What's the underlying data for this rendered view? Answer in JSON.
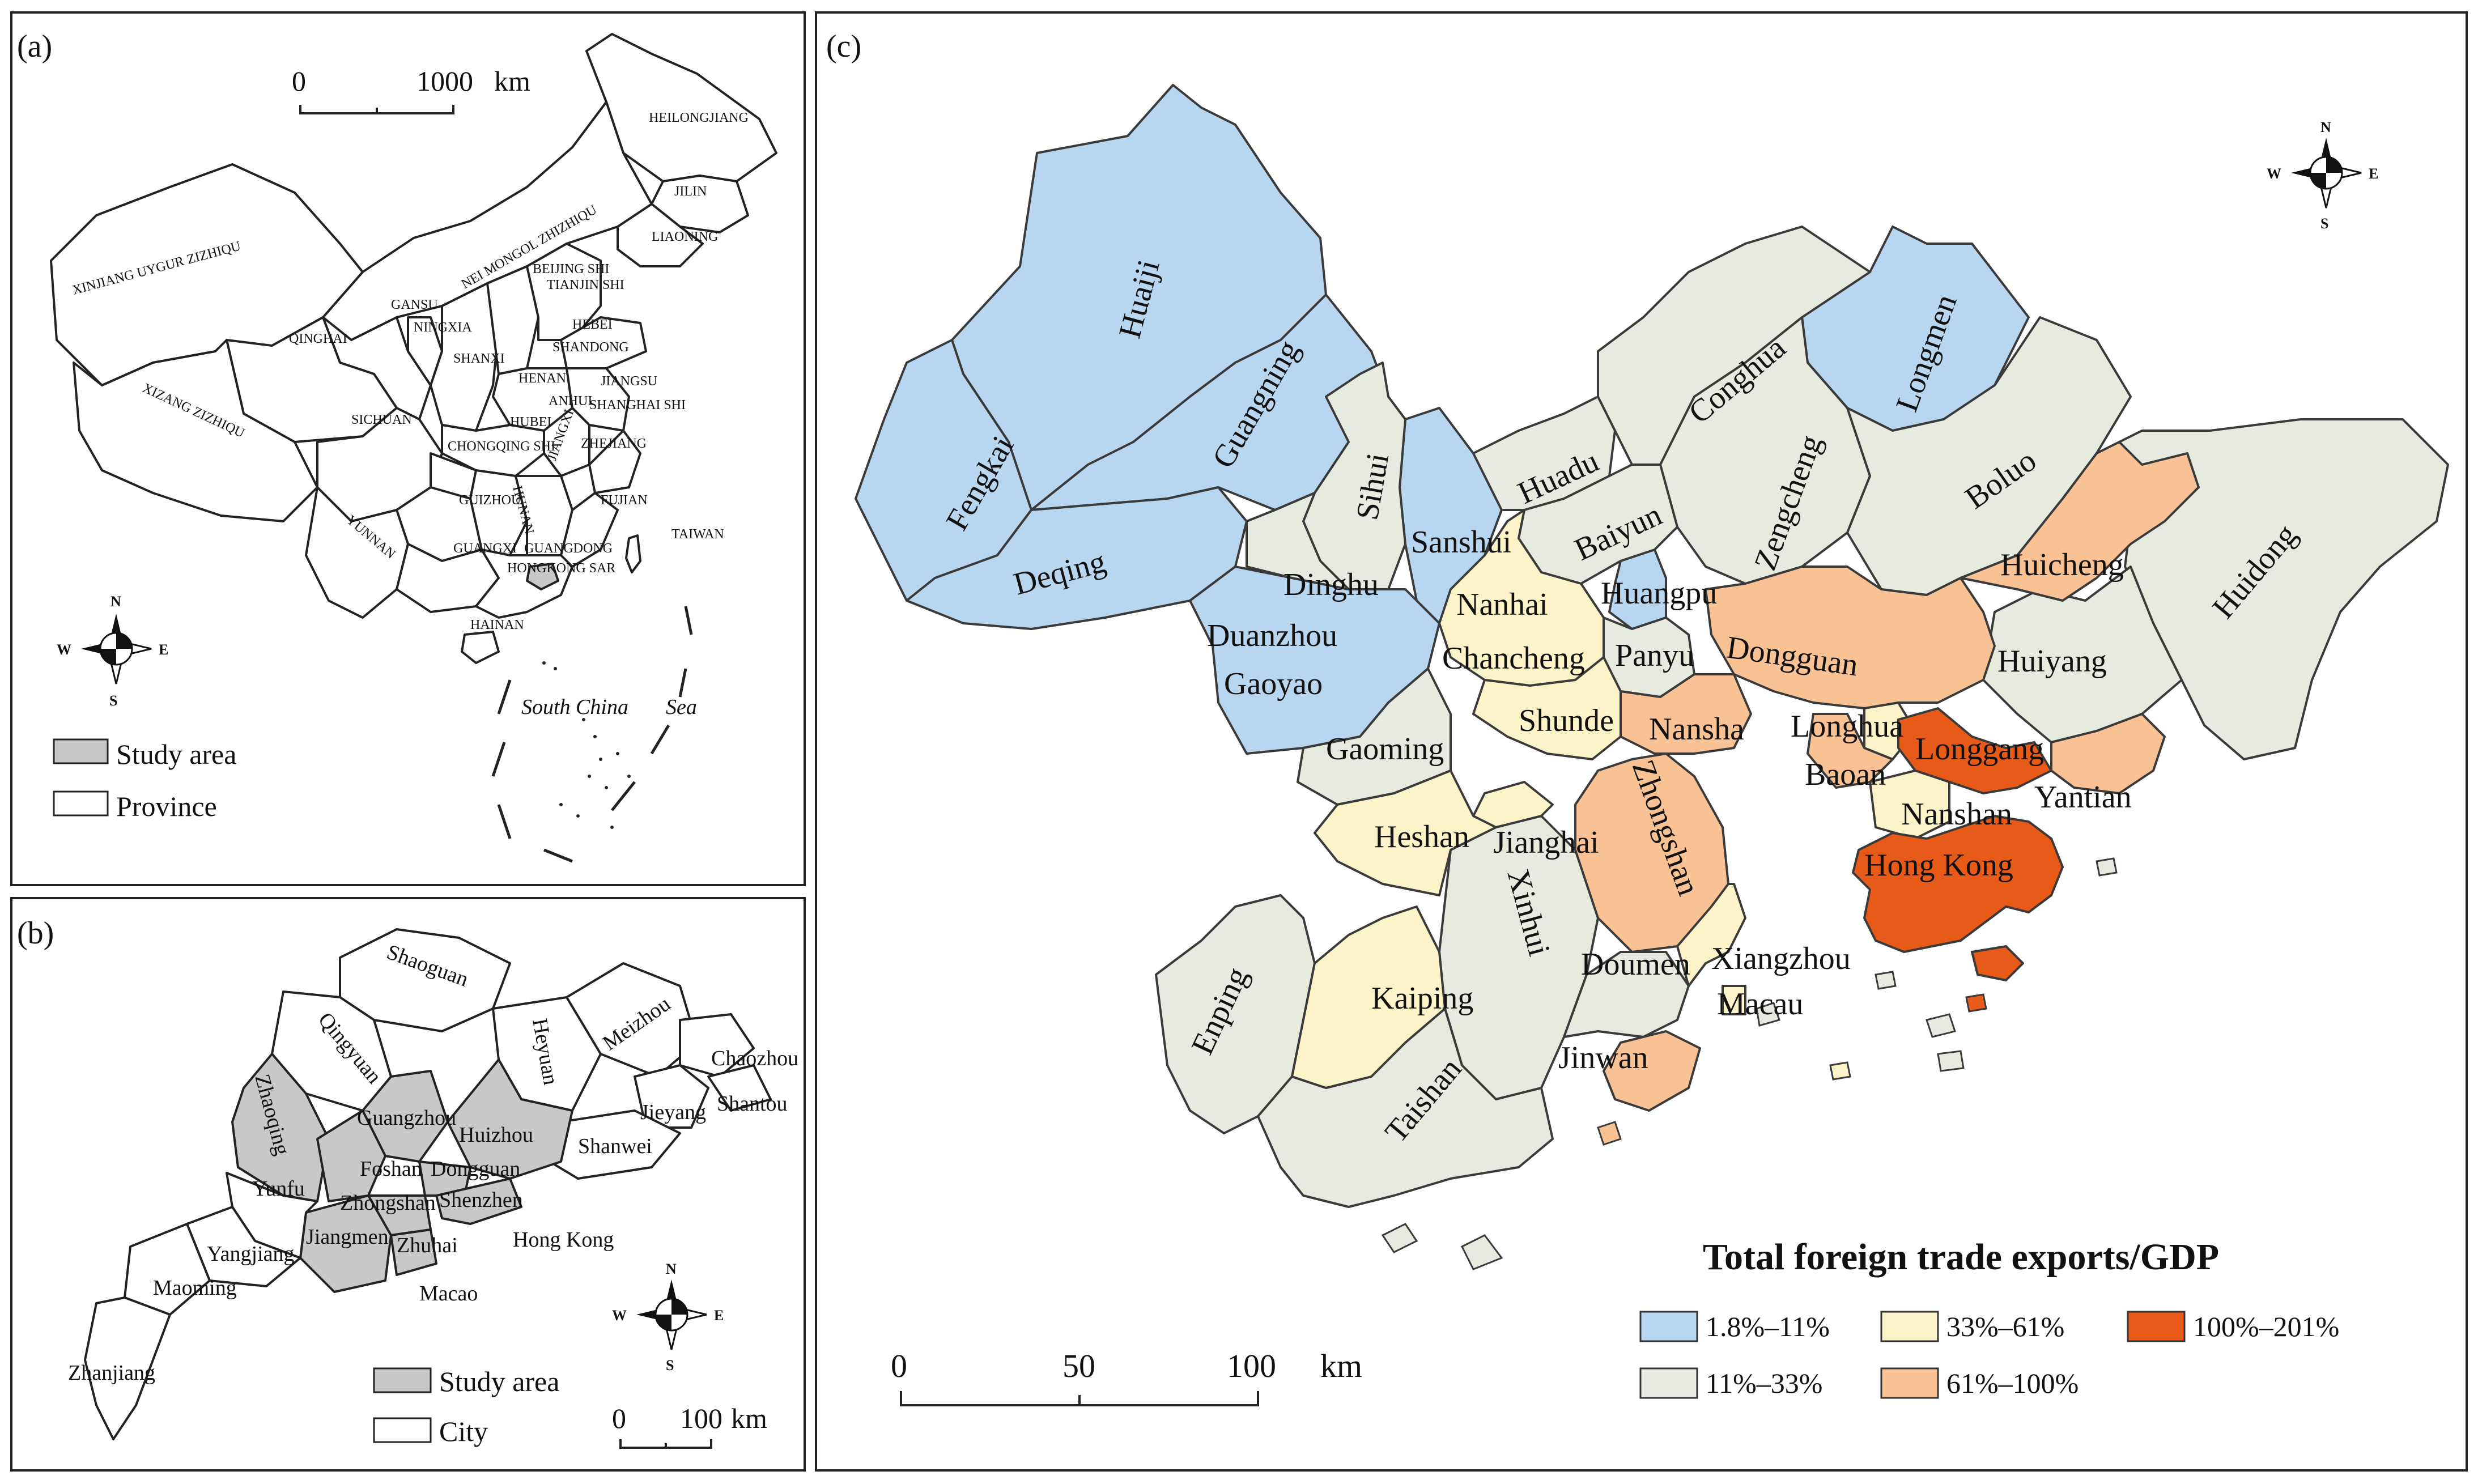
{
  "panels": {
    "a": {
      "label": "(a)",
      "scale": {
        "zero": "0",
        "distance": "1000",
        "unit": "km"
      },
      "sea_label_1": "South China",
      "sea_label_2": "Sea",
      "legend": {
        "study_area": "Study area",
        "province": "Province"
      },
      "province_labels": [
        "HEILONGJIANG",
        "JILIN",
        "LIAONING",
        "NEI MONGOL ZHIZHIQU",
        "XINJIANG UYGUR ZIZHIQU",
        "BEIJING SHI",
        "TIANJIN SHI",
        "HEBEI",
        "SHANDONG",
        "GANSU",
        "NINGXIA",
        "SHANXI",
        "QINGHAI",
        "XIZANG ZIZHIQU",
        "SICHUAN",
        "HENAN",
        "ANHUI",
        "JIANGSU",
        "SHANGHAI SHI",
        "HUBEI",
        "CHONGQING SHI",
        "ZHEJIANG",
        "HUNAN",
        "JIANGXI",
        "FUJIAN",
        "GUIZHOU",
        "YUNNAN",
        "TAIWAN",
        "GUANGXI",
        "GUANGDONG",
        "HONGKONG SAR",
        "HAINAN"
      ]
    },
    "b": {
      "label": "(b)",
      "scale": {
        "zero": "0",
        "distance": "100",
        "unit": "km"
      },
      "legend": {
        "study_area": "Study area",
        "city": "City"
      },
      "city_labels": [
        "Shaoguan",
        "Qingyuan",
        "Heyuan",
        "Meizhou",
        "Chaozhou",
        "Shantou",
        "Jieyang",
        "Shanwei",
        "Zhaoqing",
        "Guangzhou",
        "Huizhou",
        "Foshan",
        "Dongguan",
        "Yunfu",
        "Zhongshan",
        "Shenzhen",
        "Hong Kong",
        "Jiangmen",
        "Zhuhai",
        "Yangjiang",
        "Maoming",
        "Macao",
        "Zhanjiang"
      ]
    },
    "c": {
      "label": "(c)",
      "scale": {
        "zero": "0",
        "mid": "50",
        "distance": "100",
        "unit": "km"
      },
      "legend": {
        "title": "Total foreign trade exports/GDP",
        "classes": [
          {
            "label": "1.8%–11%",
            "color": "#b8d6ef"
          },
          {
            "label": "33%–61%",
            "color": "#fdf3c9"
          },
          {
            "label": "100%–201%",
            "color": "#e85a18"
          },
          {
            "label": "11%–33%",
            "color": "#e6eadf"
          },
          {
            "label": "61%–100%",
            "color": "#f9c294"
          }
        ]
      },
      "district_labels": [
        "Huaiji",
        "Fengkai",
        "Guangning",
        "Deqing",
        "Sihui",
        "Dinghu",
        "Sanshui",
        "Duanzhou",
        "Gaoyao",
        "Huadu",
        "Conghua",
        "Longmen",
        "Zengcheng",
        "Baiyun",
        "Huangpu",
        "Nanhai",
        "Chancheng",
        "Panyu",
        "Boluo",
        "Huicheng",
        "Huidong",
        "Huiyang",
        "Dongguan",
        "Gaoming",
        "Shunde",
        "Nansha",
        "Longhua",
        "Longgang",
        "Baoan",
        "Yantian",
        "Nanshan",
        "Heshan",
        "Jianghai",
        "Zhongshan",
        "Hong Kong",
        "Xinhui",
        "Enping",
        "Kaiping",
        "Doumen",
        "Xiangzhou",
        "Macau",
        "Jinwan",
        "Taishan"
      ]
    }
  },
  "compass": {
    "n": "N",
    "s": "S",
    "e": "E",
    "w": "W"
  }
}
